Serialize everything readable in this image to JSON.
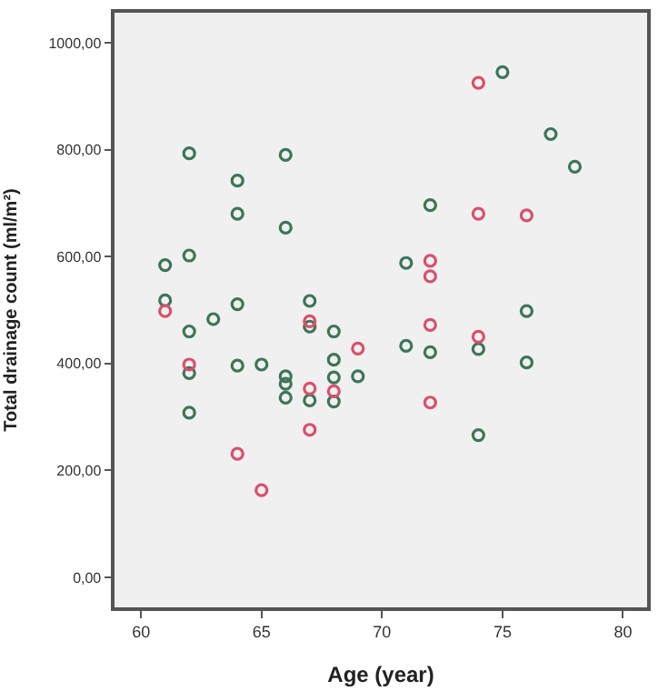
{
  "chart_data": {
    "type": "scatter",
    "xlabel": "Age (year)",
    "ylabel": "Total drainage count (ml/m²)",
    "xlim": [
      58.9,
      81
    ],
    "xticks": [
      60,
      65,
      70,
      75,
      80
    ],
    "ylim": [
      -56,
      1056
    ],
    "yticks": [
      {
        "value": 0,
        "label": "0,00"
      },
      {
        "value": 200,
        "label": "200,00"
      },
      {
        "value": 400,
        "label": "400,00"
      },
      {
        "value": 600,
        "label": "600,00"
      },
      {
        "value": 800,
        "label": "800,00"
      },
      {
        "value": 1000,
        "label": "1000,00"
      }
    ],
    "grid": false,
    "marker": "circle",
    "series": [
      {
        "color": "#3d7558",
        "x": [
          61,
          61,
          62,
          62,
          62,
          62,
          62,
          63,
          64,
          64,
          64,
          64,
          65,
          66,
          66,
          66,
          66,
          66,
          67,
          67,
          67,
          68,
          68,
          68,
          68,
          69,
          71,
          71,
          72,
          72,
          74,
          74,
          75,
          76,
          76,
          77,
          78
        ],
        "values": [
          584,
          518,
          793,
          602,
          460,
          382,
          308,
          483,
          742,
          680,
          511,
          396,
          398,
          790,
          654,
          376,
          362,
          336,
          517,
          469,
          331,
          460,
          407,
          374,
          329,
          376,
          588,
          433,
          696,
          421,
          427,
          266,
          945,
          498,
          402,
          829,
          768
        ]
      },
      {
        "color": "#d9506e",
        "x": [
          61,
          62,
          64,
          65,
          67,
          67,
          67,
          68,
          69,
          72,
          72,
          72,
          72,
          74,
          74,
          74,
          76
        ],
        "values": [
          498,
          398,
          231,
          163,
          479,
          353,
          276,
          348,
          428,
          592,
          563,
          472,
          327,
          925,
          680,
          450,
          677
        ]
      }
    ]
  }
}
